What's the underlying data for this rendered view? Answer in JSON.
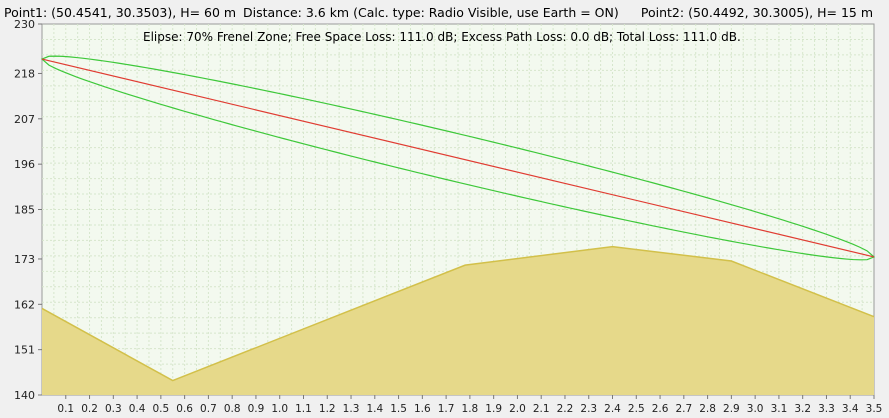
{
  "header": {
    "point1": "Point1: (50.4541, 30.3503), H= 60 m",
    "distance": "Distance: 3.6 km (Calc. type: Radio Visible, use Earth = ON)",
    "point2": "Point2: (50.4492, 30.3005), H= 15 m"
  },
  "summary": "Elipse: 70% Frenel Zone;  Free Space Loss: 111.0 dB;  Excess Path Loss: 0.0 dB;  Total Loss: 111.0 dB.",
  "colors": {
    "terrain_fill": "#e6d98a",
    "terrain_line": "#d2c04a",
    "los_line": "#e03c32",
    "fresnel_line": "#3ec83a",
    "plot_bg": "#f3f9ef",
    "grid": "#d6e6cc",
    "window_bg": "#f0f0f0"
  },
  "chart_data": {
    "type": "line",
    "xlim": [
      0,
      3.5
    ],
    "ylim": [
      140,
      230
    ],
    "yticks": [
      "140",
      "151",
      "162",
      "173",
      "185",
      "196",
      "207",
      "218",
      "230"
    ],
    "xticks": [
      "0.1",
      "0.2",
      "0.3",
      "0.4",
      "0.5",
      "0.6",
      "0.7",
      "0.8",
      "0.9",
      "1.0",
      "1.1",
      "1.2",
      "1.3",
      "1.4",
      "1.5",
      "1.6",
      "1.7",
      "1.8",
      "1.9",
      "2.0",
      "2.1",
      "2.2",
      "2.3",
      "2.4",
      "2.5",
      "2.6",
      "2.7",
      "2.8",
      "2.9",
      "3.0",
      "3.1",
      "3.2",
      "3.3",
      "3.4",
      "3.5"
    ],
    "terrain": {
      "x": [
        0,
        0.55,
        1.78,
        2.4,
        2.9,
        3.5
      ],
      "y": [
        161,
        143.5,
        171.5,
        176,
        172.5,
        159
      ]
    },
    "line_of_sight": {
      "x": [
        0,
        3.5
      ],
      "y": [
        221.5,
        173.5
      ]
    },
    "fresnel_zone": {
      "percent": 70,
      "max_half_width": 5.9
    }
  }
}
